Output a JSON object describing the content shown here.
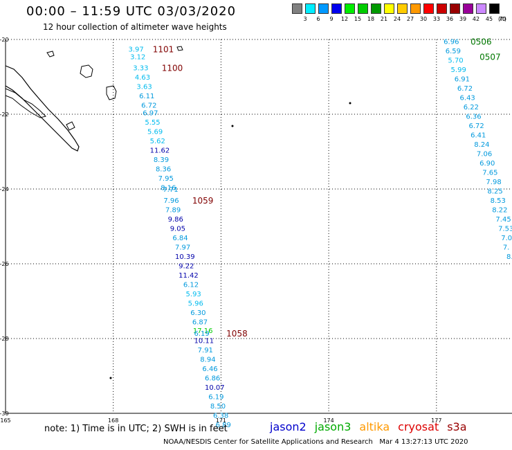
{
  "title": "00:00 – 11:59 UTC 03/03/2020",
  "subtitle": "12 hour collection of altimeter wave heights",
  "legend": {
    "unit": "(ft)",
    "entries": [
      {
        "label": "3",
        "color": "#808080"
      },
      {
        "label": "6",
        "color": "#00eeff"
      },
      {
        "label": "9",
        "color": "#0099ff"
      },
      {
        "label": "12",
        "color": "#0000ee"
      },
      {
        "label": "15",
        "color": "#00ee00"
      },
      {
        "label": "18",
        "color": "#00cc00"
      },
      {
        "label": "21",
        "color": "#009900"
      },
      {
        "label": "24",
        "color": "#ffff00"
      },
      {
        "label": "27",
        "color": "#ffcc00"
      },
      {
        "label": "30",
        "color": "#ff9900"
      },
      {
        "label": "33",
        "color": "#ff0000"
      },
      {
        "label": "36",
        "color": "#cc0000"
      },
      {
        "label": "39",
        "color": "#990000"
      },
      {
        "label": "42",
        "color": "#990099"
      },
      {
        "label": "45",
        "color": "#cc88ff"
      },
      {
        "label": "70",
        "color": "#000000"
      }
    ]
  },
  "map": {
    "lon_ticks": [
      {
        "lon": 165,
        "label": "165"
      },
      {
        "lon": 168,
        "label": "168"
      },
      {
        "lon": 171,
        "label": "171"
      },
      {
        "lon": 174,
        "label": "174"
      },
      {
        "lon": 177,
        "label": "177"
      }
    ],
    "lat_ticks": [
      {
        "lat": -20,
        "label": "-20"
      },
      {
        "lat": -22,
        "label": "-22"
      },
      {
        "lat": -24,
        "label": "-24"
      },
      {
        "lat": -26,
        "label": "-26"
      },
      {
        "lat": -28,
        "label": "-28"
      },
      {
        "lat": -30,
        "label": "-30"
      }
    ],
    "tracks": [
      {
        "time": "1101",
        "time_color": "#800000",
        "lon": 169.1,
        "lat": -20.25
      },
      {
        "time": "1100",
        "time_color": "#800000",
        "lon": 169.35,
        "lat": -20.75
      },
      {
        "time": "1059",
        "time_color": "#800000",
        "lon": 170.2,
        "lat": -24.3
      },
      {
        "time": "1058",
        "time_color": "#800000",
        "lon": 171.15,
        "lat": -27.85
      },
      {
        "time": "0506",
        "time_color": "#007700",
        "lon": 177.95,
        "lat": -20.05
      },
      {
        "time": "0507",
        "time_color": "#007700",
        "lon": 178.2,
        "lat": -20.45
      }
    ],
    "points": [
      {
        "v": "3.97",
        "lat": -20.25,
        "lon": 168.42,
        "c": "#00bbee"
      },
      {
        "v": "3.12",
        "lat": -20.45,
        "lon": 168.47,
        "c": "#00bbee"
      },
      {
        "v": "3.33",
        "lat": -20.75,
        "lon": 168.55,
        "c": "#00bbee"
      },
      {
        "v": "4.63",
        "lat": -21.0,
        "lon": 168.6,
        "c": "#00bbee"
      },
      {
        "v": "3.63",
        "lat": -21.25,
        "lon": 168.65,
        "c": "#00bbee"
      },
      {
        "v": "6.11",
        "lat": -21.5,
        "lon": 168.72,
        "c": "#0099dd"
      },
      {
        "v": "6.72",
        "lat": -21.75,
        "lon": 168.78,
        "c": "#0099dd"
      },
      {
        "v": "6.97",
        "lat": -21.95,
        "lon": 168.82,
        "c": "#0099dd"
      },
      {
        "v": "5.55",
        "lat": -22.2,
        "lon": 168.88,
        "c": "#00bbee"
      },
      {
        "v": "5.69",
        "lat": -22.45,
        "lon": 168.95,
        "c": "#00bbee"
      },
      {
        "v": "5.62",
        "lat": -22.7,
        "lon": 169.02,
        "c": "#00bbee"
      },
      {
        "v": "11.62",
        "lat": -22.95,
        "lon": 169.02,
        "c": "#0000aa"
      },
      {
        "v": "8.39",
        "lat": -23.2,
        "lon": 169.12,
        "c": "#0099dd"
      },
      {
        "v": "8.36",
        "lat": -23.45,
        "lon": 169.18,
        "c": "#0099dd"
      },
      {
        "v": "7.95",
        "lat": -23.7,
        "lon": 169.25,
        "c": "#0099dd"
      },
      {
        "v": "8.16",
        "lat": -23.95,
        "lon": 169.32,
        "c": "#0099dd"
      },
      {
        "v": "7.71",
        "lat": -24.0,
        "lon": 169.38,
        "c": "#0099dd"
      },
      {
        "v": "7.96",
        "lat": -24.3,
        "lon": 169.4,
        "c": "#0099dd"
      },
      {
        "v": "7.89",
        "lat": -24.55,
        "lon": 169.45,
        "c": "#0099dd"
      },
      {
        "v": "9.86",
        "lat": -24.8,
        "lon": 169.52,
        "c": "#0000aa"
      },
      {
        "v": "9.05",
        "lat": -25.05,
        "lon": 169.58,
        "c": "#0000aa"
      },
      {
        "v": "6.84",
        "lat": -25.3,
        "lon": 169.65,
        "c": "#0099dd"
      },
      {
        "v": "7.97",
        "lat": -25.55,
        "lon": 169.72,
        "c": "#0099dd"
      },
      {
        "v": "10.39",
        "lat": -25.8,
        "lon": 169.72,
        "c": "#0000aa"
      },
      {
        "v": "9.22",
        "lat": -26.05,
        "lon": 169.82,
        "c": "#0000aa"
      },
      {
        "v": "11.42",
        "lat": -26.3,
        "lon": 169.82,
        "c": "#0000aa"
      },
      {
        "v": "6.12",
        "lat": -26.55,
        "lon": 169.95,
        "c": "#0099dd"
      },
      {
        "v": "5.93",
        "lat": -26.8,
        "lon": 170.02,
        "c": "#00bbee"
      },
      {
        "v": "5.96",
        "lat": -27.05,
        "lon": 170.08,
        "c": "#00bbee"
      },
      {
        "v": "6.30",
        "lat": -27.3,
        "lon": 170.15,
        "c": "#0099dd"
      },
      {
        "v": "6.87",
        "lat": -27.55,
        "lon": 170.2,
        "c": "#0099dd"
      },
      {
        "v": "17.16",
        "lat": -27.78,
        "lon": 170.22,
        "c": "#00cc00"
      },
      {
        "v": "6.19",
        "lat": -27.85,
        "lon": 170.25,
        "c": "#0099dd"
      },
      {
        "v": "10.11",
        "lat": -28.05,
        "lon": 170.25,
        "c": "#0000aa"
      },
      {
        "v": "7.91",
        "lat": -28.3,
        "lon": 170.35,
        "c": "#0099dd"
      },
      {
        "v": "8.94",
        "lat": -28.55,
        "lon": 170.42,
        "c": "#0099dd"
      },
      {
        "v": "6.46",
        "lat": -28.8,
        "lon": 170.48,
        "c": "#0099dd"
      },
      {
        "v": "6.86",
        "lat": -29.05,
        "lon": 170.55,
        "c": "#0099dd"
      },
      {
        "v": "10.07",
        "lat": -29.3,
        "lon": 170.55,
        "c": "#0000aa"
      },
      {
        "v": "6.19",
        "lat": -29.55,
        "lon": 170.65,
        "c": "#0099dd"
      },
      {
        "v": "8.50",
        "lat": -29.8,
        "lon": 170.7,
        "c": "#0099dd"
      },
      {
        "v": "6.38",
        "lat": -30.05,
        "lon": 170.78,
        "c": "#0099dd"
      },
      {
        "v": "6.89",
        "lat": -30.3,
        "lon": 170.85,
        "c": "#0099dd"
      },
      {
        "v": "6.96",
        "lat": -20.05,
        "lon": 177.2,
        "c": "#0099dd"
      },
      {
        "v": "6.59",
        "lat": -20.3,
        "lon": 177.25,
        "c": "#0099dd"
      },
      {
        "v": "5.70",
        "lat": -20.55,
        "lon": 177.32,
        "c": "#00bbee"
      },
      {
        "v": "5.99",
        "lat": -20.8,
        "lon": 177.4,
        "c": "#00bbee"
      },
      {
        "v": "6.91",
        "lat": -21.05,
        "lon": 177.5,
        "c": "#0099dd"
      },
      {
        "v": "6.72",
        "lat": -21.3,
        "lon": 177.58,
        "c": "#0099dd"
      },
      {
        "v": "6.43",
        "lat": -21.55,
        "lon": 177.65,
        "c": "#0099dd"
      },
      {
        "v": "6.22",
        "lat": -21.8,
        "lon": 177.75,
        "c": "#0099dd"
      },
      {
        "v": "6.36",
        "lat": -22.05,
        "lon": 177.82,
        "c": "#0099dd"
      },
      {
        "v": "6.72",
        "lat": -22.3,
        "lon": 177.9,
        "c": "#0099dd"
      },
      {
        "v": "6.41",
        "lat": -22.55,
        "lon": 177.95,
        "c": "#0099dd"
      },
      {
        "v": "8.24",
        "lat": -22.8,
        "lon": 178.05,
        "c": "#0099dd"
      },
      {
        "v": "7.06",
        "lat": -23.05,
        "lon": 178.12,
        "c": "#0099dd"
      },
      {
        "v": "6.90",
        "lat": -23.3,
        "lon": 178.2,
        "c": "#0099dd"
      },
      {
        "v": "7.65",
        "lat": -23.55,
        "lon": 178.28,
        "c": "#0099dd"
      },
      {
        "v": "7.98",
        "lat": -23.8,
        "lon": 178.38,
        "c": "#0099dd"
      },
      {
        "v": "8.25",
        "lat": -24.05,
        "lon": 178.42,
        "c": "#0099dd"
      },
      {
        "v": "8.53",
        "lat": -24.3,
        "lon": 178.5,
        "c": "#0099dd"
      },
      {
        "v": "8.22",
        "lat": -24.55,
        "lon": 178.55,
        "c": "#0099dd"
      },
      {
        "v": "7.45",
        "lat": -24.8,
        "lon": 178.65,
        "c": "#0099dd"
      },
      {
        "v": "7.53",
        "lat": -25.05,
        "lon": 178.72,
        "c": "#0099dd"
      },
      {
        "v": "7.0",
        "lat": -25.3,
        "lon": 178.8,
        "c": "#0099dd"
      },
      {
        "v": "7.",
        "lat": -25.55,
        "lon": 178.85,
        "c": "#0099dd"
      },
      {
        "v": "8.",
        "lat": -25.8,
        "lon": 178.95,
        "c": "#0099dd"
      }
    ]
  },
  "footer": {
    "note": "note: 1) Time is in UTC; 2) SWH is in feet",
    "satellites": [
      {
        "name": "jason2",
        "color": "#0000cc"
      },
      {
        "name": "jason3",
        "color": "#00aa00"
      },
      {
        "name": "altika",
        "color": "#ff9900"
      },
      {
        "name": "cryosat",
        "color": "#dd0000"
      },
      {
        "name": "s3a",
        "color": "#990000"
      }
    ],
    "credit": "NOAA/NESDIS Center for Satellite Applications and Research",
    "timestamp": "Mar  4 13:27:13 UTC 2020"
  }
}
